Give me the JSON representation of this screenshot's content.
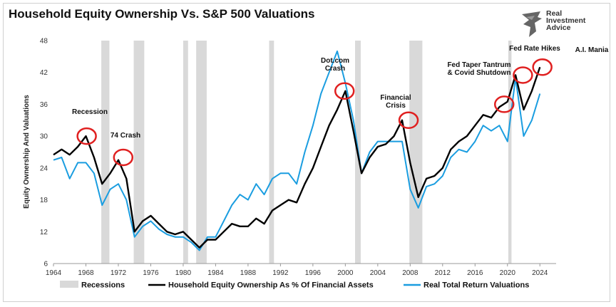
{
  "title": "Household Equity Ownership Vs. S&P 500 Valuations",
  "logo": {
    "line1": "Real",
    "line2": "Investment",
    "line3": "Advice"
  },
  "colors": {
    "equity": "#000000",
    "valuation": "#1a9de0",
    "recession": "#d9d9d9",
    "circle": "#e02020"
  },
  "chart_data": {
    "type": "line",
    "xlabel": "",
    "ylabel": "Equity Ownership And Valuations",
    "xlim": [
      1964,
      2026
    ],
    "ylim": [
      6,
      48
    ],
    "yticks": [
      6,
      12,
      18,
      24,
      30,
      36,
      42,
      48
    ],
    "xticks": [
      1964,
      1968,
      1972,
      1976,
      1980,
      1984,
      1988,
      1992,
      1996,
      2000,
      2004,
      2008,
      2012,
      2016,
      2020,
      2024
    ],
    "grid": false,
    "legend_position": "bottom",
    "recessions": [
      [
        1969.9,
        1970.9
      ],
      [
        1973.9,
        1975.2
      ],
      [
        1980.0,
        1980.6
      ],
      [
        1981.6,
        1982.9
      ],
      [
        1990.6,
        1991.2
      ],
      [
        2001.2,
        2001.9
      ],
      [
        2007.9,
        2009.5
      ],
      [
        2020.1,
        2020.5
      ]
    ],
    "series": [
      {
        "name": "Household Equity Ownership As % Of Financial Assets",
        "x": [
          1964,
          1965,
          1966,
          1967,
          1968,
          1969,
          1970,
          1971,
          1972,
          1973,
          1974,
          1975,
          1976,
          1977,
          1978,
          1979,
          1980,
          1981,
          1982,
          1983,
          1984,
          1985,
          1986,
          1987,
          1988,
          1989,
          1990,
          1991,
          1992,
          1993,
          1994,
          1995,
          1996,
          1997,
          1998,
          1999,
          2000,
          2001,
          2002,
          2003,
          2004,
          2005,
          2006,
          2007,
          2008,
          2009,
          2010,
          2011,
          2012,
          2013,
          2014,
          2015,
          2016,
          2017,
          2018,
          2019,
          2020,
          2021,
          2022,
          2023,
          2024
        ],
        "values": [
          26.5,
          27.5,
          26.5,
          28,
          30,
          26,
          21,
          23,
          25.5,
          22,
          12,
          14,
          15,
          13.5,
          12,
          11.5,
          12,
          10.5,
          9,
          10.5,
          10.5,
          12,
          13.5,
          13,
          13,
          14.5,
          13.5,
          16,
          17,
          18,
          17.5,
          21,
          24,
          28,
          32,
          35,
          38.5,
          31,
          23,
          26,
          28,
          28.5,
          30,
          33,
          25,
          18.5,
          22,
          22.5,
          24,
          27.5,
          29,
          30,
          32,
          34,
          33.5,
          35.5,
          36.5,
          41.5,
          35,
          38.5,
          43
        ]
      },
      {
        "name": "Real Total Return Valuations",
        "x": [
          1964,
          1965,
          1966,
          1967,
          1968,
          1969,
          1970,
          1971,
          1972,
          1973,
          1974,
          1975,
          1976,
          1977,
          1978,
          1979,
          1980,
          1981,
          1982,
          1983,
          1984,
          1985,
          1986,
          1987,
          1988,
          1989,
          1990,
          1991,
          1992,
          1993,
          1994,
          1995,
          1996,
          1997,
          1998,
          1999,
          2000,
          2001,
          2002,
          2003,
          2004,
          2005,
          2006,
          2007,
          2008,
          2009,
          2010,
          2011,
          2012,
          2013,
          2014,
          2015,
          2016,
          2017,
          2018,
          2019,
          2020,
          2021,
          2022,
          2023,
          2024
        ],
        "values": [
          25.5,
          26,
          22,
          25,
          25,
          23,
          17,
          20,
          21,
          18,
          11,
          13,
          14,
          12.5,
          11.5,
          11,
          11,
          10,
          8.5,
          11,
          11,
          14,
          17,
          19,
          18,
          21,
          19,
          22,
          23,
          23,
          21,
          27,
          32,
          38,
          42,
          46,
          40,
          33,
          23,
          27,
          29,
          29,
          29,
          29,
          20,
          16.5,
          20.5,
          21,
          22.5,
          26,
          27.5,
          27,
          29,
          32,
          31,
          32,
          29,
          41,
          30,
          33,
          38
        ]
      }
    ],
    "annotations": [
      {
        "text": "Recession",
        "x": 1968
      },
      {
        "text": "74 Crash",
        "x": 1972.5
      },
      {
        "text": "Dot.com",
        "x": 1998
      },
      {
        "text": "Crash",
        "x": 1998
      },
      {
        "text": "Financial",
        "x": 2007
      },
      {
        "text": "Crisis",
        "x": 2007
      },
      {
        "text": "Fed Taper Tantrum",
        "x": 2017.5
      },
      {
        "text": "& Covid Shutdown",
        "x": 2017.5
      },
      {
        "text": "Fed Rate Hikes",
        "x": 2021
      },
      {
        "text": "A.I. Mania",
        "x": 2025
      }
    ],
    "highlights": [
      [
        1968.1,
        30
      ],
      [
        1972.6,
        26
      ],
      [
        1999.9,
        38.5
      ],
      [
        2007.8,
        33
      ],
      [
        2019.6,
        36
      ],
      [
        2021.9,
        41.5
      ],
      [
        2024.3,
        43
      ]
    ],
    "legend": [
      "Recessions",
      "Household Equity Ownership As % Of Financial Assets",
      "Real Total Return Valuations"
    ]
  }
}
